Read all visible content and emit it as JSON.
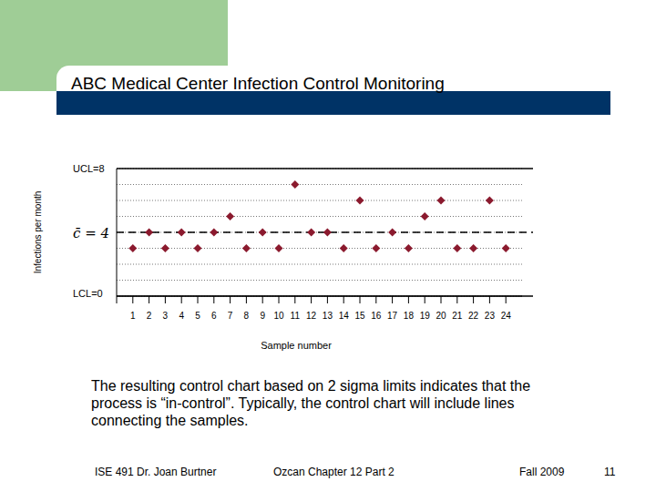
{
  "chart_data": {
    "type": "scatter",
    "title": "ABC Medical Center Infection Control Monitoring",
    "x_label": "Sample number",
    "y_label": "Infections per month",
    "x": [
      1,
      2,
      3,
      4,
      5,
      6,
      7,
      8,
      9,
      10,
      11,
      12,
      13,
      14,
      15,
      16,
      17,
      18,
      19,
      20,
      21,
      22,
      23,
      24
    ],
    "values": [
      3,
      4,
      3,
      4,
      3,
      4,
      5,
      3,
      4,
      3,
      7,
      4,
      4,
      3,
      6,
      3,
      4,
      3,
      5,
      6,
      3,
      3,
      6,
      3
    ],
    "color": "#8b1a2e",
    "marker": "diamond",
    "xlim": [
      0,
      25
    ],
    "xticks": [
      1,
      2,
      3,
      4,
      5,
      6,
      7,
      8,
      9,
      10,
      11,
      12,
      13,
      14,
      15,
      16,
      17,
      18,
      19,
      20,
      21,
      22,
      23,
      24
    ],
    "ylim": [
      0,
      8
    ],
    "yticks": [
      0,
      1,
      2,
      3,
      4,
      5,
      6,
      7,
      8
    ],
    "grid": true,
    "tick_labels": "x",
    "control_limits": {
      "ucl": {
        "value": 8,
        "label": "UCL=8"
      },
      "center": {
        "value": 4,
        "label": "c̄ = 4"
      },
      "lcl": {
        "value": 0,
        "label": "LCL=0"
      }
    }
  },
  "slide": {
    "caption": "The resulting control chart based on 2 sigma limits indicates that the process is “in-control”. Typically, the control chart will include lines connecting the samples.",
    "footer": [
      "ISE 491  Dr. Joan Burtner",
      "Ozcan Chapter 12  Part 2",
      "Fall 2009",
      "11"
    ]
  }
}
